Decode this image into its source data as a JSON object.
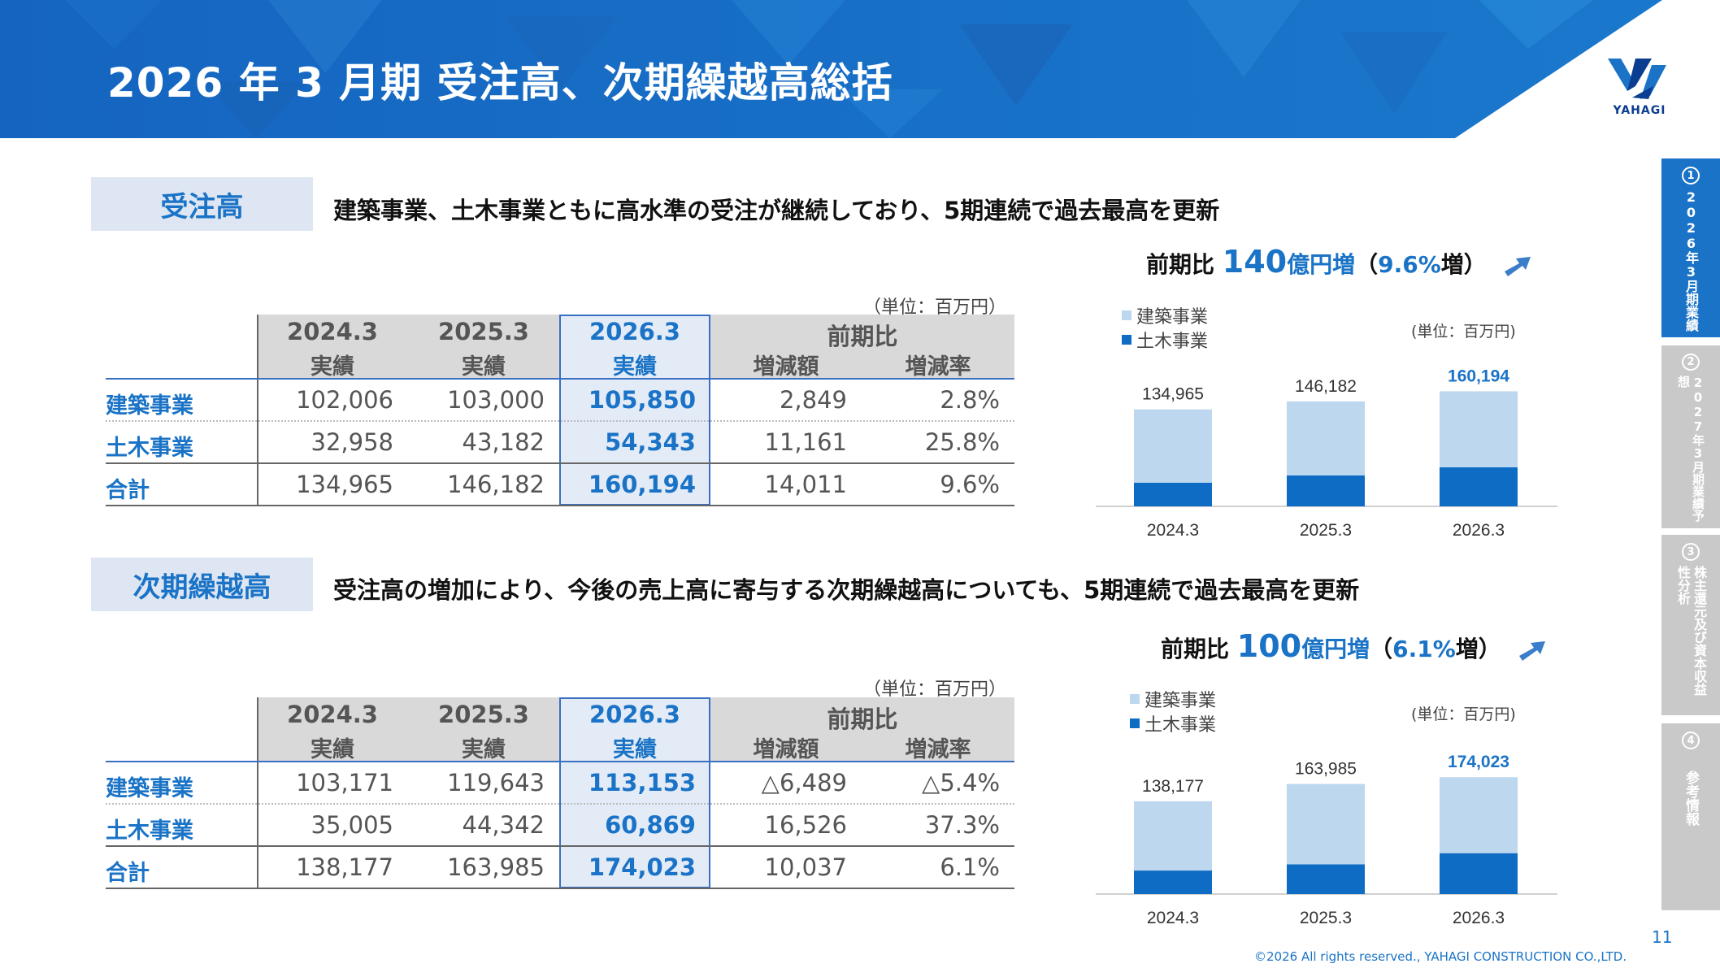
{
  "page": {
    "title": "2026 年 3 月期 受注高、次期繰越高総括",
    "logo_text": "YAHAGI",
    "page_number": "11",
    "copyright": "©2026  All  rights  reserved.,  YAHAGI  CONSTRUCTION  CO.,LTD."
  },
  "colors": {
    "accent": "#1a73c6",
    "light_bar": "#bdd7ee",
    "dark_bar": "#0f6cc4"
  },
  "sections": [
    {
      "label": "受注高",
      "description": "建築事業、土木事業ともに高水準の受注が継続しており、5期連続で過去最高を更新",
      "table": {
        "unit": "（単位：百万円）",
        "headers": {
          "periods": [
            "2024.3",
            "2025.3",
            "2026.3"
          ],
          "period_sub": [
            "実績",
            "実績",
            "実績"
          ],
          "compare": "前期比",
          "compare_sub": [
            "増減額",
            "増減率"
          ]
        },
        "rows": [
          {
            "label": "建築事業",
            "values": [
              "102,006",
              "103,000",
              "105,850",
              "2,849",
              "2.8%"
            ]
          },
          {
            "label": "土木事業",
            "values": [
              "32,958",
              "43,182",
              "54,343",
              "11,161",
              "25.8%"
            ]
          },
          {
            "label": "合計",
            "values": [
              "134,965",
              "146,182",
              "160,194",
              "14,011",
              "9.6%"
            ]
          }
        ]
      },
      "chart_head": {
        "prefix": "前期比 ",
        "amount": "140",
        "unit_text": "億円増",
        "pct_open": "（",
        "pct": "9.6%",
        "pct_close": "増）"
      },
      "chart_legend": [
        "建築事業",
        "土木事業"
      ],
      "chart_unit": "(単位：百万円)",
      "chart_labels": [
        "134,965",
        "146,182",
        "160,194"
      ]
    },
    {
      "label": "次期繰越高",
      "description": "受注高の増加により、今後の売上高に寄与する次期繰越高についても、5期連続で過去最高を更新",
      "table": {
        "unit": "（単位：百万円）",
        "headers": {
          "periods": [
            "2024.3",
            "2025.3",
            "2026.3"
          ],
          "period_sub": [
            "実績",
            "実績",
            "実績"
          ],
          "compare": "前期比",
          "compare_sub": [
            "増減額",
            "増減率"
          ]
        },
        "rows": [
          {
            "label": "建築事業",
            "values": [
              "103,171",
              "119,643",
              "113,153",
              "△6,489",
              "△5.4%"
            ]
          },
          {
            "label": "土木事業",
            "values": [
              "35,005",
              "44,342",
              "60,869",
              "16,526",
              "37.3%"
            ]
          },
          {
            "label": "合計",
            "values": [
              "138,177",
              "163,985",
              "174,023",
              "10,037",
              "6.1%"
            ]
          }
        ]
      },
      "chart_head": {
        "prefix": "前期比 ",
        "amount": "100",
        "unit_text": "億円増",
        "pct_open": "（",
        "pct": "6.1%",
        "pct_close": "増）"
      },
      "chart_legend": [
        "建築事業",
        "土木事業"
      ],
      "chart_unit": "(単位：百万円)",
      "chart_labels": [
        "138,177",
        "163,985",
        "174,023"
      ]
    }
  ],
  "chart_data": [
    {
      "type": "bar",
      "stacked": true,
      "categories": [
        "2024.3",
        "2025.3",
        "2026.3"
      ],
      "series": [
        {
          "name": "土木事業",
          "values": [
            32958,
            43182,
            54343
          ],
          "color": "#0f6cc4"
        },
        {
          "name": "建築事業",
          "values": [
            102006,
            103000,
            105850
          ],
          "color": "#bdd7ee"
        }
      ],
      "totals": [
        134965,
        146182,
        160194
      ],
      "ylim": [
        0,
        215000
      ]
    },
    {
      "type": "bar",
      "stacked": true,
      "categories": [
        "2024.3",
        "2025.3",
        "2026.3"
      ],
      "series": [
        {
          "name": "土木事業",
          "values": [
            35005,
            44342,
            60869
          ],
          "color": "#0f6cc4"
        },
        {
          "name": "建築事業",
          "values": [
            103171,
            119643,
            113153
          ],
          "color": "#bdd7ee"
        }
      ],
      "totals": [
        138177,
        163985,
        174023
      ],
      "ylim": [
        0,
        230000
      ]
    }
  ],
  "side_tabs": [
    {
      "num": "1",
      "label": "2026年3月期業績",
      "active": true
    },
    {
      "num": "2",
      "label": "2027年3月期業績予想",
      "active": false
    },
    {
      "num": "3",
      "label": "株主還元及び資本収益性分析",
      "active": false
    },
    {
      "num": "4",
      "label": "参考情報",
      "active": false
    }
  ]
}
